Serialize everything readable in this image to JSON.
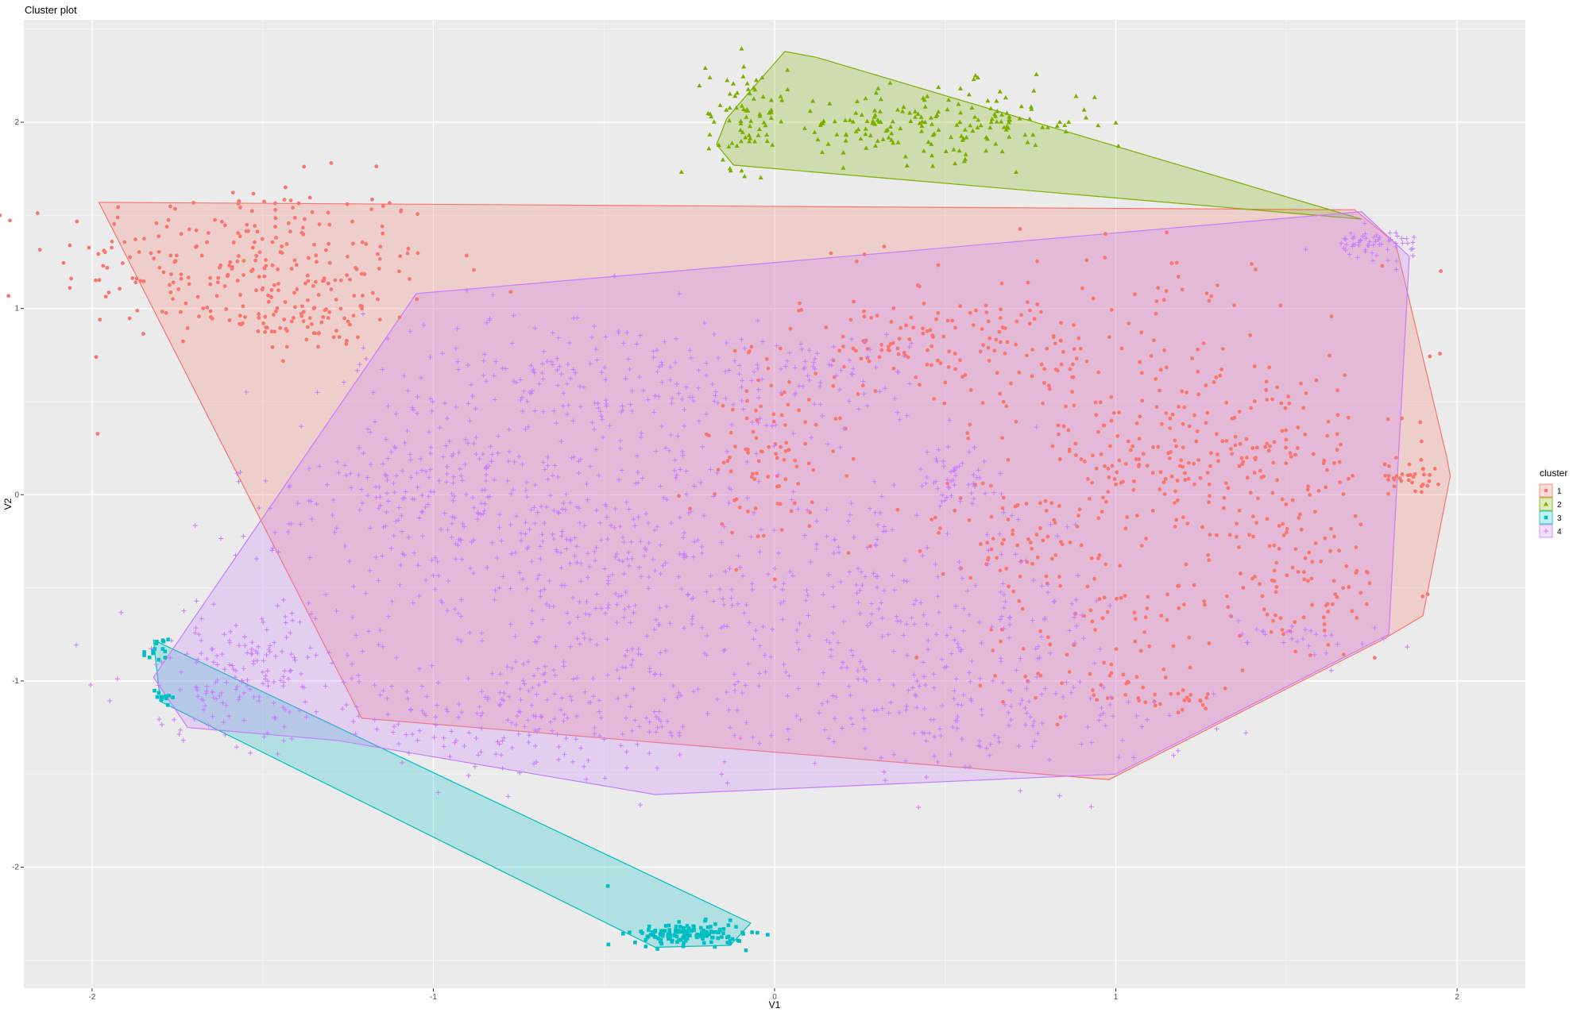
{
  "chart_data": {
    "type": "scatter",
    "title": "Cluster plot",
    "xlabel": "V1",
    "ylabel": "V2",
    "xlim": [
      -2.2,
      2.2
    ],
    "ylim": [
      -2.65,
      2.55
    ],
    "x_ticks": [
      -2,
      -1,
      0,
      1,
      2
    ],
    "y_ticks": [
      -2,
      -1,
      0,
      1,
      2
    ],
    "x_tick_labels": [
      "-2",
      "-1",
      "0",
      "1",
      "2"
    ],
    "y_tick_labels": [
      "-2",
      "-1",
      "0",
      "1",
      "2"
    ],
    "grid": true,
    "background_color": "#ebebeb",
    "legend": {
      "title": "cluster",
      "position": "right",
      "labels": [
        "1",
        "2",
        "3",
        "4"
      ]
    },
    "series": [
      {
        "name": "1",
        "color": "#f8766d",
        "marker": "circle",
        "hull": [
          [
            -1.98,
            1.57
          ],
          [
            1.7,
            1.53
          ],
          [
            1.82,
            1.35
          ],
          [
            1.97,
            0.2
          ],
          [
            1.98,
            0.1
          ],
          [
            1.9,
            -0.65
          ],
          [
            1.78,
            -0.78
          ],
          [
            0.98,
            -1.53
          ],
          [
            -1.21,
            -1.2
          ],
          [
            -1.98,
            1.57
          ]
        ],
        "clusters": [
          {
            "cx": -1.55,
            "cy": 1.25,
            "sx": 0.28,
            "sy": 0.22,
            "n": 260
          },
          {
            "cx": -1.35,
            "cy": 0.95,
            "sx": 0.12,
            "sy": 0.1,
            "n": 60
          },
          {
            "cx": 0.45,
            "cy": 0.82,
            "sx": 0.25,
            "sy": 0.12,
            "n": 110
          },
          {
            "cx": 0.0,
            "cy": 0.15,
            "sx": 0.12,
            "sy": 0.22,
            "n": 90
          },
          {
            "cx": 0.9,
            "cy": 0.8,
            "sx": 0.35,
            "sy": 0.3,
            "n": 140
          },
          {
            "cx": 1.1,
            "cy": 0.15,
            "sx": 0.22,
            "sy": 0.2,
            "n": 130
          },
          {
            "cx": 1.45,
            "cy": 0.2,
            "sx": 0.2,
            "sy": 0.3,
            "n": 120
          },
          {
            "cx": 1.5,
            "cy": -0.5,
            "sx": 0.18,
            "sy": 0.2,
            "n": 100
          },
          {
            "cx": 0.72,
            "cy": -0.25,
            "sx": 0.18,
            "sy": 0.15,
            "n": 70
          },
          {
            "cx": 0.95,
            "cy": -0.85,
            "sx": 0.2,
            "sy": 0.18,
            "n": 70
          },
          {
            "cx": 1.88,
            "cy": 0.1,
            "sx": 0.04,
            "sy": 0.04,
            "n": 30
          },
          {
            "cx": 1.15,
            "cy": -1.1,
            "sx": 0.12,
            "sy": 0.03,
            "n": 25
          }
        ]
      },
      {
        "name": "2",
        "color": "#7cae00",
        "marker": "triangle",
        "hull": [
          [
            0.03,
            2.38
          ],
          [
            0.12,
            2.35
          ],
          [
            1.72,
            1.48
          ],
          [
            -0.12,
            1.77
          ],
          [
            -0.17,
            1.88
          ],
          [
            -0.14,
            2.02
          ],
          [
            -0.08,
            2.15
          ],
          [
            0.03,
            2.38
          ]
        ],
        "clusters": [
          {
            "cx": -0.08,
            "cy": 2.05,
            "sx": 0.06,
            "sy": 0.15,
            "n": 80
          },
          {
            "cx": 0.55,
            "cy": 2.0,
            "sx": 0.2,
            "sy": 0.1,
            "n": 140
          },
          {
            "cx": 0.25,
            "cy": 1.98,
            "sx": 0.08,
            "sy": 0.08,
            "n": 40
          }
        ]
      },
      {
        "name": "3",
        "color": "#00bfc4",
        "marker": "square",
        "hull": [
          [
            -1.82,
            -0.78
          ],
          [
            -1.8,
            -1.11
          ],
          [
            -0.35,
            -2.43
          ],
          [
            -0.13,
            -2.42
          ],
          [
            -0.07,
            -2.3
          ],
          [
            -1.82,
            -0.78
          ]
        ],
        "clusters": [
          {
            "cx": -0.25,
            "cy": -2.36,
            "sx": 0.08,
            "sy": 0.03,
            "n": 150
          },
          {
            "cx": -1.81,
            "cy": -0.85,
            "sx": 0.02,
            "sy": 0.04,
            "n": 15
          },
          {
            "cx": -1.79,
            "cy": -1.08,
            "sx": 0.02,
            "sy": 0.02,
            "n": 12
          },
          {
            "cx": -0.49,
            "cy": -2.1,
            "sx": 0.002,
            "sy": 0.002,
            "n": 1
          }
        ]
      },
      {
        "name": "4",
        "color": "#c77cff",
        "marker": "plus",
        "hull": [
          [
            -1.05,
            1.08
          ],
          [
            1.72,
            1.52
          ],
          [
            1.86,
            1.28
          ],
          [
            1.8,
            -0.75
          ],
          [
            1.0,
            -1.5
          ],
          [
            -0.35,
            -1.61
          ],
          [
            -1.28,
            -1.32
          ],
          [
            -1.72,
            -1.25
          ],
          [
            -1.82,
            -0.98
          ],
          [
            -1.05,
            1.08
          ]
        ],
        "clusters": [
          {
            "cx": -0.5,
            "cy": 0.6,
            "sx": 0.35,
            "sy": 0.2,
            "n": 260
          },
          {
            "cx": -1.0,
            "cy": 0.0,
            "sx": 0.3,
            "sy": 0.2,
            "n": 220
          },
          {
            "cx": -0.5,
            "cy": -0.4,
            "sx": 0.35,
            "sy": 0.35,
            "n": 360
          },
          {
            "cx": -1.55,
            "cy": -0.95,
            "sx": 0.18,
            "sy": 0.18,
            "n": 180
          },
          {
            "cx": -0.7,
            "cy": -1.2,
            "sx": 0.35,
            "sy": 0.15,
            "n": 220
          },
          {
            "cx": 0.35,
            "cy": -0.65,
            "sx": 0.35,
            "sy": 0.3,
            "n": 260
          },
          {
            "cx": 0.6,
            "cy": -1.2,
            "sx": 0.3,
            "sy": 0.15,
            "n": 150
          },
          {
            "cx": 1.75,
            "cy": 1.35,
            "sx": 0.07,
            "sy": 0.04,
            "n": 60
          },
          {
            "cx": 0.2,
            "cy": 0.65,
            "sx": 0.12,
            "sy": 0.12,
            "n": 50
          },
          {
            "cx": 0.5,
            "cy": 0.1,
            "sx": 0.08,
            "sy": 0.08,
            "n": 50
          },
          {
            "cx": 1.55,
            "cy": -0.75,
            "sx": 0.12,
            "sy": 0.06,
            "n": 30
          }
        ]
      }
    ]
  }
}
